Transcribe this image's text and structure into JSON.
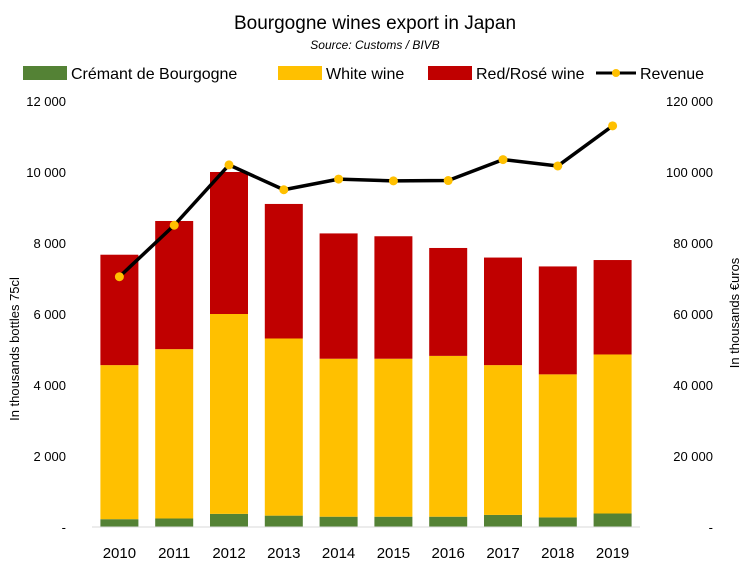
{
  "chart_data": {
    "type": "bar",
    "stacked": true,
    "title": "Bourgogne wines export in Japan",
    "subtitle": "Source: Customs / BIVB",
    "categories": [
      "2010",
      "2011",
      "2012",
      "2013",
      "2014",
      "2015",
      "2016",
      "2017",
      "2018",
      "2019"
    ],
    "series": [
      {
        "name": "Crémant de Bourgogne",
        "axis": "left",
        "kind": "bar",
        "color": "#548235",
        "values": [
          220,
          240,
          370,
          320,
          290,
          290,
          290,
          340,
          270,
          380
        ]
      },
      {
        "name": "White wine",
        "axis": "left",
        "kind": "bar",
        "color": "#FFC000",
        "values": [
          4340,
          4770,
          5630,
          4990,
          4450,
          4450,
          4530,
          4220,
          4030,
          4480
        ]
      },
      {
        "name": "Red/Rosé wine",
        "axis": "left",
        "kind": "bar",
        "color": "#C00000",
        "values": [
          3110,
          3610,
          4000,
          3790,
          3530,
          3450,
          3040,
          3030,
          3040,
          2660
        ]
      },
      {
        "name": "Revenue",
        "axis": "right",
        "kind": "line",
        "color": "#000000",
        "marker_color": "#FFC000",
        "values": [
          70500,
          85000,
          102000,
          95000,
          98000,
          97500,
          97600,
          103500,
          101700,
          113000
        ]
      }
    ],
    "left_axis": {
      "label": "In thousands bottles 75cl",
      "min": 0,
      "max": 12000,
      "ticks": [
        {
          "v": 0,
          "t": "-"
        },
        {
          "v": 2000,
          "t": "2 000"
        },
        {
          "v": 4000,
          "t": "4 000"
        },
        {
          "v": 6000,
          "t": "6 000"
        },
        {
          "v": 8000,
          "t": "8 000"
        },
        {
          "v": 10000,
          "t": "10 000"
        },
        {
          "v": 12000,
          "t": "12 000"
        }
      ]
    },
    "right_axis": {
      "label": "In thousands €uros",
      "min": 0,
      "max": 120000,
      "ticks": [
        {
          "v": 0,
          "t": "-"
        },
        {
          "v": 20000,
          "t": "20 000"
        },
        {
          "v": 40000,
          "t": "40 000"
        },
        {
          "v": 60000,
          "t": "60 000"
        },
        {
          "v": 80000,
          "t": "80 000"
        },
        {
          "v": 100000,
          "t": "100 000"
        },
        {
          "v": 120000,
          "t": "120 000"
        }
      ]
    },
    "grid": false,
    "legend_position": "top"
  }
}
